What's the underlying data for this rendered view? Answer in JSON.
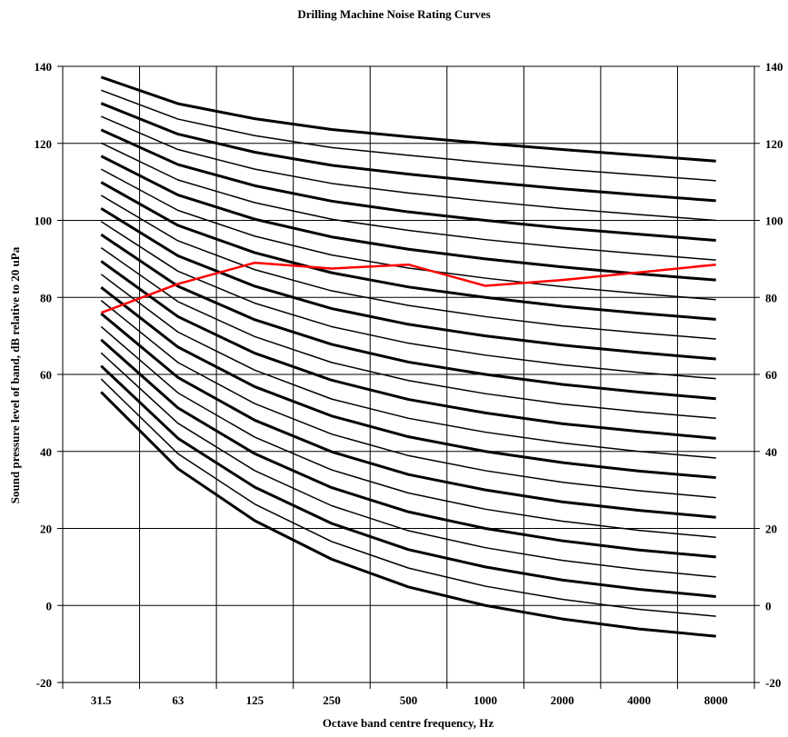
{
  "chart_data": {
    "type": "line",
    "title": "Drilling Machine Noise Rating Curves",
    "xlabel": "Octave band centre frequency, Hz",
    "ylabel": "Sound pressure level of band, dB relative to 20 uPa",
    "categories": [
      "31.5",
      "63",
      "125",
      "250",
      "500",
      "1000",
      "2000",
      "4000",
      "8000"
    ],
    "ylim": [
      -20,
      140
    ],
    "yticks": [
      -20,
      0,
      20,
      40,
      60,
      80,
      100,
      120,
      140
    ],
    "grid": true,
    "secondary_y_axis": true,
    "reference_curves": [
      {
        "values": [
          55.4,
          35.5,
          22.0,
          12.0,
          4.8,
          0.0,
          -3.5,
          -6.1,
          -8.0
        ]
      },
      {
        "values": [
          58.8,
          39.4,
          26.3,
          16.6,
          9.7,
          5.0,
          1.6,
          -1.0,
          -2.8
        ]
      },
      {
        "values": [
          62.2,
          43.4,
          30.7,
          21.3,
          14.5,
          10.0,
          6.6,
          4.2,
          2.3
        ]
      },
      {
        "values": [
          65.6,
          47.3,
          35.0,
          25.9,
          19.4,
          15.0,
          11.7,
          9.3,
          7.4
        ]
      },
      {
        "values": [
          69.0,
          51.3,
          39.4,
          30.6,
          24.3,
          20.0,
          16.8,
          14.4,
          12.6
        ]
      },
      {
        "values": [
          72.4,
          55.2,
          43.7,
          35.2,
          29.2,
          25.0,
          21.9,
          19.5,
          17.7
        ]
      },
      {
        "values": [
          75.8,
          59.2,
          48.1,
          39.9,
          34.0,
          30.0,
          26.9,
          24.7,
          22.9
        ]
      },
      {
        "values": [
          79.2,
          63.1,
          52.4,
          44.5,
          38.9,
          35.0,
          32.0,
          29.8,
          28.0
        ]
      },
      {
        "values": [
          82.6,
          67.1,
          56.8,
          49.2,
          43.8,
          40.0,
          37.1,
          34.9,
          33.2
        ]
      },
      {
        "values": [
          86.0,
          71.0,
          61.1,
          53.6,
          48.6,
          45.0,
          42.2,
          40.0,
          38.3
        ]
      },
      {
        "values": [
          89.4,
          75.0,
          65.5,
          58.5,
          53.5,
          50.0,
          47.2,
          45.2,
          43.4
        ]
      },
      {
        "values": [
          92.9,
          78.9,
          69.8,
          63.1,
          58.4,
          55.0,
          52.3,
          50.3,
          48.6
        ]
      },
      {
        "values": [
          96.3,
          82.9,
          74.2,
          67.8,
          63.2,
          60.0,
          57.4,
          55.4,
          53.7
        ]
      },
      {
        "values": [
          99.7,
          86.8,
          78.5,
          72.4,
          68.1,
          65.0,
          62.5,
          60.5,
          58.9
        ]
      },
      {
        "values": [
          103.1,
          90.8,
          82.9,
          77.1,
          73.0,
          70.0,
          67.6,
          65.7,
          64.0
        ]
      },
      {
        "values": [
          106.5,
          94.7,
          87.2,
          81.7,
          77.9,
          75.0,
          72.6,
          70.8,
          69.2
        ]
      },
      {
        "values": [
          109.9,
          98.7,
          91.6,
          86.4,
          82.7,
          80.0,
          77.7,
          75.9,
          74.3
        ]
      },
      {
        "values": [
          113.3,
          102.6,
          95.9,
          91.0,
          87.6,
          85.0,
          82.8,
          81.0,
          79.4
        ]
      },
      {
        "values": [
          116.7,
          106.6,
          100.3,
          95.7,
          92.5,
          90.0,
          87.9,
          86.1,
          84.5
        ]
      },
      {
        "values": [
          120.1,
          110.5,
          104.6,
          100.3,
          97.4,
          95.0,
          93.0,
          91.3,
          89.7
        ]
      },
      {
        "values": [
          123.5,
          114.5,
          109.0,
          105.0,
          102.2,
          100.0,
          98.0,
          96.4,
          94.8
        ]
      },
      {
        "values": [
          127.0,
          118.4,
          113.3,
          109.6,
          107.1,
          105.0,
          103.1,
          101.5,
          100.0
        ]
      },
      {
        "values": [
          130.4,
          122.4,
          117.7,
          114.3,
          112.0,
          110.0,
          108.2,
          106.6,
          105.1
        ]
      },
      {
        "values": [
          133.8,
          126.3,
          122.0,
          118.9,
          116.9,
          115.0,
          113.3,
          111.8,
          110.3
        ]
      },
      {
        "values": [
          137.2,
          130.3,
          126.4,
          123.6,
          121.7,
          120.0,
          118.4,
          116.9,
          115.4
        ]
      }
    ],
    "series": [
      {
        "color": "#ff0000",
        "values": [
          76,
          83.5,
          89,
          87.5,
          88.5,
          83,
          84.5,
          86.5,
          88.5
        ]
      }
    ]
  }
}
